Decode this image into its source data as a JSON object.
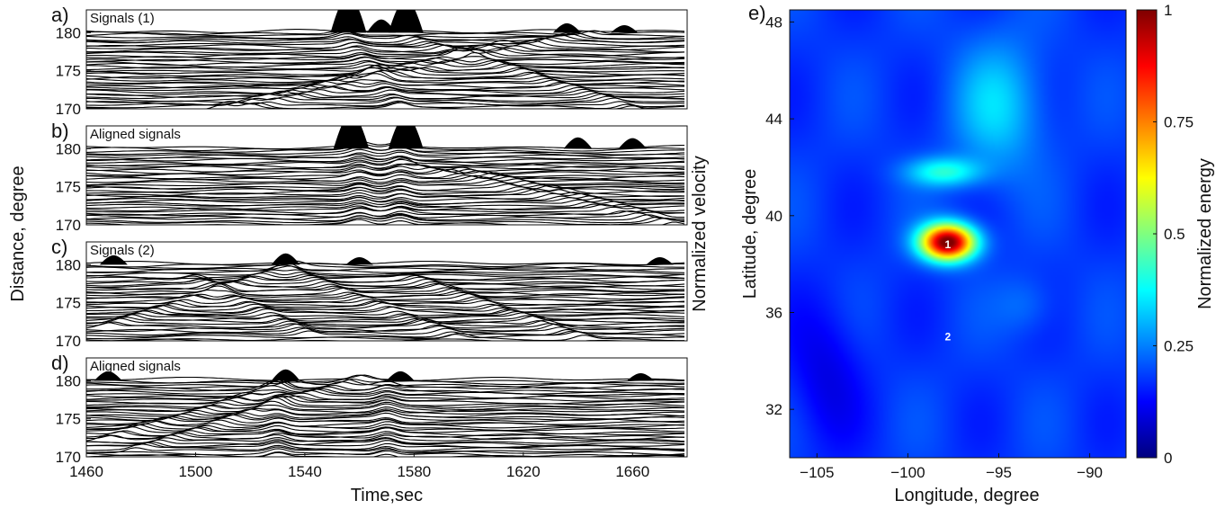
{
  "chart_data": [
    {
      "id": "a",
      "type": "line",
      "panel_label": "a)",
      "title": "Signals (1)",
      "xlim": [
        1460,
        1680
      ],
      "ylim": [
        170,
        183
      ],
      "yticks": [
        170,
        175,
        180
      ],
      "ylabel": "",
      "xlabel": "",
      "kind": "seismic-record-section",
      "phases": [
        {
          "t0": 1520,
          "d0": 170,
          "t1": 1640,
          "d1": 179.5
        },
        {
          "t0": 1510,
          "d0": 170,
          "t1": 1610,
          "d1": 178
        },
        {
          "t0": 1575,
          "d0": 170,
          "t1": 1555,
          "d1": 179.5
        },
        {
          "t0": 1660,
          "d0": 170,
          "t1": 1580,
          "d1": 179
        }
      ],
      "peaks": [
        {
          "t": 1556,
          "amp": 1.0
        },
        {
          "t": 1577,
          "amp": 0.9
        },
        {
          "t": 1568,
          "amp": 0.35
        },
        {
          "t": 1636,
          "amp": 0.25
        },
        {
          "t": 1657,
          "amp": 0.2
        }
      ]
    },
    {
      "id": "b",
      "type": "line",
      "panel_label": "b)",
      "title": "Aligned signals",
      "xlim": [
        1460,
        1680
      ],
      "ylim": [
        170,
        183
      ],
      "yticks": [
        170,
        175,
        180
      ],
      "ylabel": "",
      "xlabel": "",
      "kind": "seismic-record-section",
      "phases": [
        {
          "t0": 1560,
          "d0": 170,
          "t1": 1560,
          "d1": 180
        },
        {
          "t0": 1575,
          "d0": 170,
          "t1": 1575,
          "d1": 180
        },
        {
          "t0": 1580,
          "d0": 177.5,
          "t1": 1675,
          "d1": 170
        },
        {
          "t0": 1600,
          "d0": 177,
          "t1": 1665,
          "d1": 171.5
        }
      ],
      "peaks": [
        {
          "t": 1557,
          "amp": 0.95
        },
        {
          "t": 1577,
          "amp": 0.9
        },
        {
          "t": 1640,
          "amp": 0.3
        },
        {
          "t": 1660,
          "amp": 0.28
        }
      ]
    },
    {
      "id": "c",
      "type": "line",
      "panel_label": "c)",
      "title": "Signals (2)",
      "xlim": [
        1460,
        1680
      ],
      "ylim": [
        170,
        183
      ],
      "yticks": [
        170,
        175,
        180
      ],
      "ylabel": "",
      "xlabel": "",
      "kind": "seismic-record-section",
      "phases": [
        {
          "t0": 1470,
          "d0": 172,
          "t1": 1535,
          "d1": 179.5
        },
        {
          "t0": 1540,
          "d0": 171,
          "t1": 1500,
          "d1": 178
        },
        {
          "t0": 1595,
          "d0": 170.5,
          "t1": 1535,
          "d1": 179
        },
        {
          "t0": 1640,
          "d0": 170.5,
          "t1": 1580,
          "d1": 178
        }
      ],
      "peaks": [
        {
          "t": 1470,
          "amp": 0.25
        },
        {
          "t": 1533,
          "amp": 0.3
        },
        {
          "t": 1560,
          "amp": 0.2
        },
        {
          "t": 1670,
          "amp": 0.2
        }
      ]
    },
    {
      "id": "d",
      "type": "line",
      "panel_label": "d)",
      "title": "Aligned signals",
      "xlim": [
        1460,
        1680
      ],
      "ylim": [
        170,
        183
      ],
      "yticks": [
        170,
        175,
        180
      ],
      "ylabel": "",
      "xlabel": "Time,sec",
      "xticks": [
        1460,
        1500,
        1540,
        1580,
        1620,
        1660
      ],
      "kind": "seismic-record-section",
      "phases": [
        {
          "t0": 1470,
          "d0": 172.5,
          "t1": 1535,
          "d1": 179.5
        },
        {
          "t0": 1480,
          "d0": 171,
          "t1": 1560,
          "d1": 180
        },
        {
          "t0": 1530,
          "d0": 170,
          "t1": 1530,
          "d1": 179
        },
        {
          "t0": 1570,
          "d0": 170,
          "t1": 1570,
          "d1": 179
        }
      ],
      "peaks": [
        {
          "t": 1468,
          "amp": 0.25
        },
        {
          "t": 1533,
          "amp": 0.3
        },
        {
          "t": 1575,
          "amp": 0.25
        },
        {
          "t": 1663,
          "amp": 0.2
        }
      ]
    },
    {
      "id": "e",
      "type": "heatmap",
      "panel_label": "e)",
      "xlabel": "Longitude, degree",
      "ylabel": "Latitude, degree",
      "xlim": [
        -106.5,
        -88
      ],
      "ylim": [
        30,
        48.5
      ],
      "xticks": [
        -105,
        -100,
        -95,
        -90
      ],
      "ytick_values": [
        32,
        36,
        40,
        44,
        48
      ],
      "colorbar": {
        "label": "Normalized energy",
        "range": [
          0,
          1
        ],
        "ticks": [
          "0",
          "0.25",
          "0.5",
          "0.75",
          "1"
        ],
        "colormap": "jet"
      },
      "background": 0.18,
      "blobs": [
        {
          "lon": -97.8,
          "lat": 38.9,
          "sx": 1.5,
          "sy": 0.75,
          "amp": 0.85
        },
        {
          "lon": -98,
          "lat": 41.8,
          "sx": 2.0,
          "sy": 0.6,
          "amp": 0.22
        },
        {
          "lon": -95,
          "lat": 44.5,
          "sx": 2.5,
          "sy": 2.8,
          "amp": 0.15
        },
        {
          "lon": -93.5,
          "lat": 36.3,
          "sx": 1.6,
          "sy": 1.2,
          "amp": 0.06
        },
        {
          "lon": -104.5,
          "lat": 33.5,
          "sx": 2.0,
          "sy": 3.0,
          "amp": -0.08
        }
      ],
      "markers": [
        {
          "label": "1",
          "lon": -97.8,
          "lat": 38.8
        },
        {
          "label": "2",
          "lon": -97.8,
          "lat": 35.0
        }
      ]
    }
  ],
  "left_shared": {
    "ylabel": "Distance, degree",
    "right_label": "Normalized velocity"
  }
}
